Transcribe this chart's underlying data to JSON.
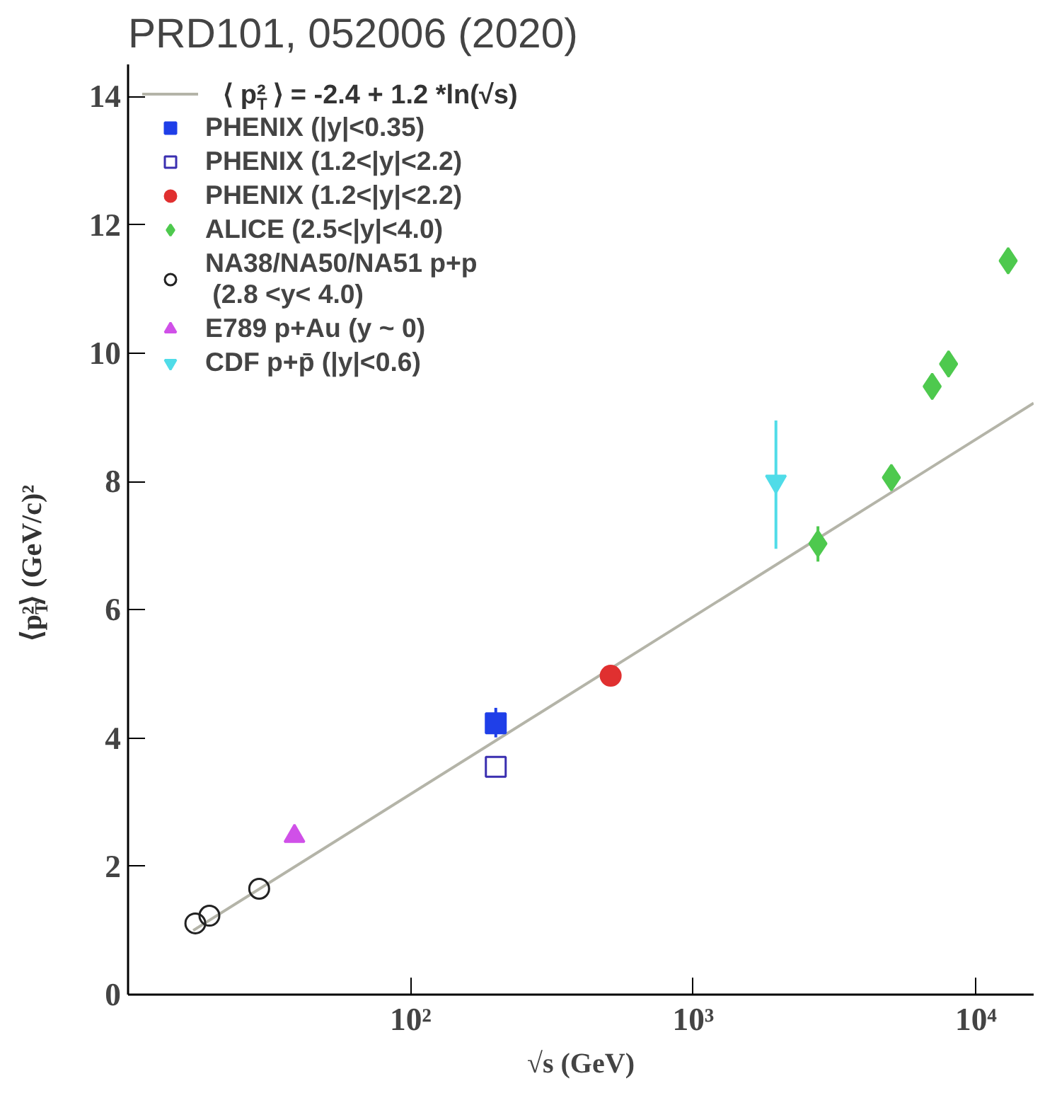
{
  "chart_data": {
    "type": "scatter",
    "title": "PRD101, 052006 (2020)",
    "xlabel": "√s (GeV)",
    "ylabel": "⟨p$_{T}$²⟩ (GeV/c)²",
    "log": "x",
    "xlim": [
      10,
      16000
    ],
    "ylim": [
      0,
      14.5
    ],
    "xticks": [
      {
        "value": 100,
        "label": "10²"
      },
      {
        "value": 1000,
        "label": "10³"
      },
      {
        "value": 10000,
        "label": "10⁴"
      }
    ],
    "yticks": [
      0,
      2,
      4,
      6,
      8,
      10,
      12,
      14
    ],
    "grid": false,
    "legend": "top left",
    "series": [
      {
        "name": "⟨ p$_{T}$² ⟩ = -2.4 + 1.2 *ln(√s)",
        "type": "line",
        "color": "#b4b4a8",
        "x": [
          17,
          16000
        ],
        "values": [
          1.0,
          9.22
        ]
      },
      {
        "name": "PHENIX (|y|<0.35)",
        "marker": "square",
        "color": "#1f3fe8",
        "x": [
          200
        ],
        "values": [
          4.23
        ],
        "errors": [
          [
            4.01,
            4.47
          ]
        ]
      },
      {
        "name": "PHENIX (1.2<|y|<2.2)",
        "marker": "square_open",
        "color": "#3a2fb0",
        "x": [
          200
        ],
        "values": [
          3.55
        ]
      },
      {
        "name": "PHENIX (1.2<|y|<2.2)",
        "marker": "circle",
        "color": "#e03030",
        "x": [
          510
        ],
        "values": [
          4.97
        ]
      },
      {
        "name": "ALICE (2.5<|y|<4.0)",
        "marker": "diamond",
        "color": "#4ec94e",
        "x": [
          2760,
          5020,
          7000,
          8000,
          13000
        ],
        "values": [
          7.03,
          8.06,
          9.48,
          9.83,
          11.44
        ],
        "errors": [
          [
            6.75,
            7.3
          ],
          null,
          null,
          null,
          null
        ]
      },
      {
        "name": "NA38/NA50/NA51 p+p\n (2.8 <y< 4.0)",
        "marker": "circle_open",
        "color": "#222222",
        "x": [
          17.3,
          19.4,
          29.1
        ],
        "values": [
          1.11,
          1.23,
          1.65
        ]
      },
      {
        "name": "E789 p+Au (y ~ 0)",
        "marker": "triangle",
        "color": "#d050e8",
        "x": [
          38.8
        ],
        "values": [
          2.47
        ]
      },
      {
        "name": "CDF p+p̄ (|y|<0.6)",
        "marker": "triangle_down",
        "color": "#50dce8",
        "x": [
          1960
        ],
        "values": [
          8.0
        ],
        "errors": [
          [
            6.95,
            8.95
          ]
        ]
      }
    ]
  }
}
